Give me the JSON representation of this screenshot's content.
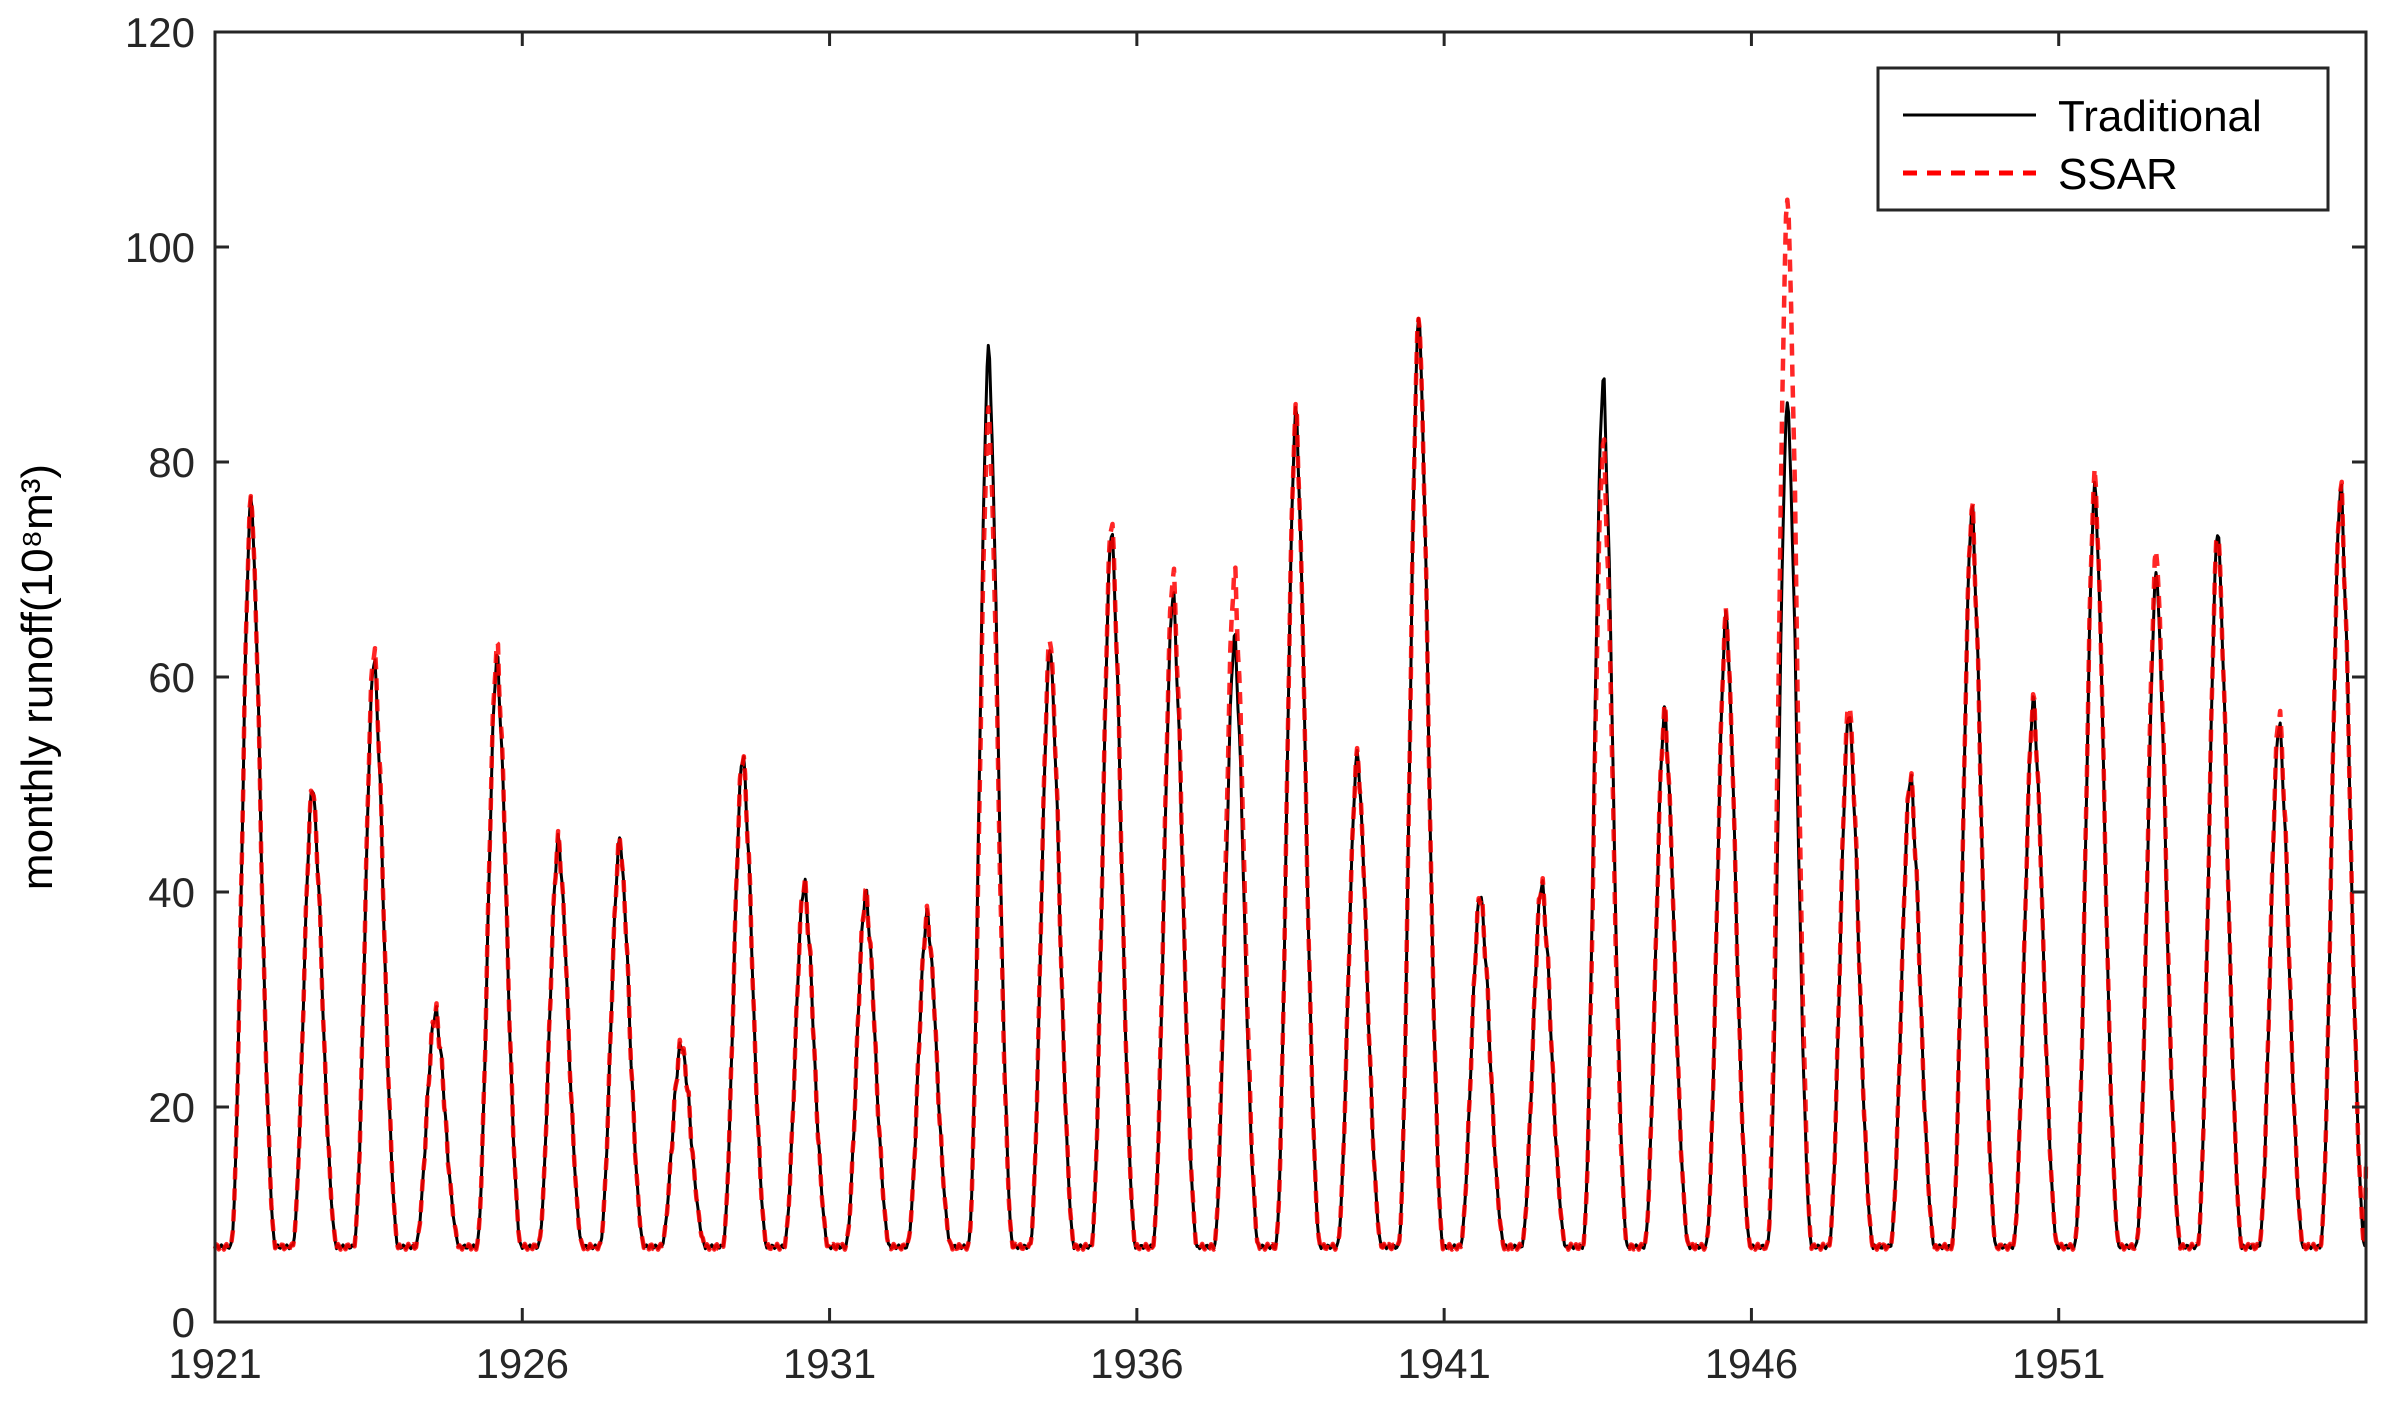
{
  "chart_data": {
    "type": "line",
    "title": "",
    "xlabel": "",
    "ylabel": "monthly runoff(10⁸m³)",
    "xlim": [
      1921,
      1956
    ],
    "ylim": [
      0,
      120
    ],
    "xticks": [
      "1921",
      "1926",
      "1931",
      "1936",
      "1941",
      "1946",
      "1951"
    ],
    "yticks": [
      "0",
      "20",
      "40",
      "60",
      "80",
      "100",
      "120"
    ],
    "grid": false,
    "legend": "top-right",
    "series": [
      {
        "name": "Traditional",
        "color": "#000000",
        "style": "solid",
        "annual_peaks": [
          [
            1921,
            77
          ],
          [
            1922,
            50
          ],
          [
            1923,
            62
          ],
          [
            1924,
            29
          ],
          [
            1925,
            62
          ],
          [
            1926,
            45
          ],
          [
            1927,
            45
          ],
          [
            1928,
            26
          ],
          [
            1929,
            53
          ],
          [
            1930,
            41
          ],
          [
            1931,
            40
          ],
          [
            1932,
            38
          ],
          [
            1933,
            91
          ],
          [
            1934,
            63
          ],
          [
            1935,
            74
          ],
          [
            1936,
            68
          ],
          [
            1937,
            64
          ],
          [
            1938,
            85
          ],
          [
            1939,
            53
          ],
          [
            1940,
            94
          ],
          [
            1941,
            40
          ],
          [
            1942,
            41
          ],
          [
            1943,
            88
          ],
          [
            1944,
            57
          ],
          [
            1945,
            66
          ],
          [
            1946,
            86
          ],
          [
            1947,
            57
          ],
          [
            1948,
            51
          ],
          [
            1949,
            76
          ],
          [
            1950,
            58
          ],
          [
            1951,
            78
          ],
          [
            1952,
            70
          ],
          [
            1953,
            74
          ],
          [
            1954,
            56
          ],
          [
            1955,
            78
          ]
        ],
        "annual_minimum": 7
      },
      {
        "name": "SSAR",
        "color": "#ff0000",
        "style": "dashed",
        "annual_peaks": [
          [
            1921,
            77
          ],
          [
            1922,
            50
          ],
          [
            1923,
            63
          ],
          [
            1924,
            29
          ],
          [
            1925,
            63
          ],
          [
            1926,
            45
          ],
          [
            1927,
            45
          ],
          [
            1928,
            26
          ],
          [
            1929,
            53
          ],
          [
            1930,
            41
          ],
          [
            1931,
            40
          ],
          [
            1932,
            38
          ],
          [
            1933,
            85
          ],
          [
            1934,
            64
          ],
          [
            1935,
            75
          ],
          [
            1936,
            70
          ],
          [
            1937,
            70
          ],
          [
            1938,
            85
          ],
          [
            1939,
            53
          ],
          [
            1940,
            94
          ],
          [
            1941,
            40
          ],
          [
            1942,
            41
          ],
          [
            1943,
            82
          ],
          [
            1944,
            57
          ],
          [
            1945,
            66
          ],
          [
            1946,
            105
          ],
          [
            1947,
            58
          ],
          [
            1948,
            51
          ],
          [
            1949,
            76
          ],
          [
            1950,
            58
          ],
          [
            1951,
            79
          ],
          [
            1952,
            72
          ],
          [
            1953,
            74
          ],
          [
            1954,
            57
          ],
          [
            1955,
            78
          ]
        ],
        "annual_minimum": 7
      }
    ]
  }
}
